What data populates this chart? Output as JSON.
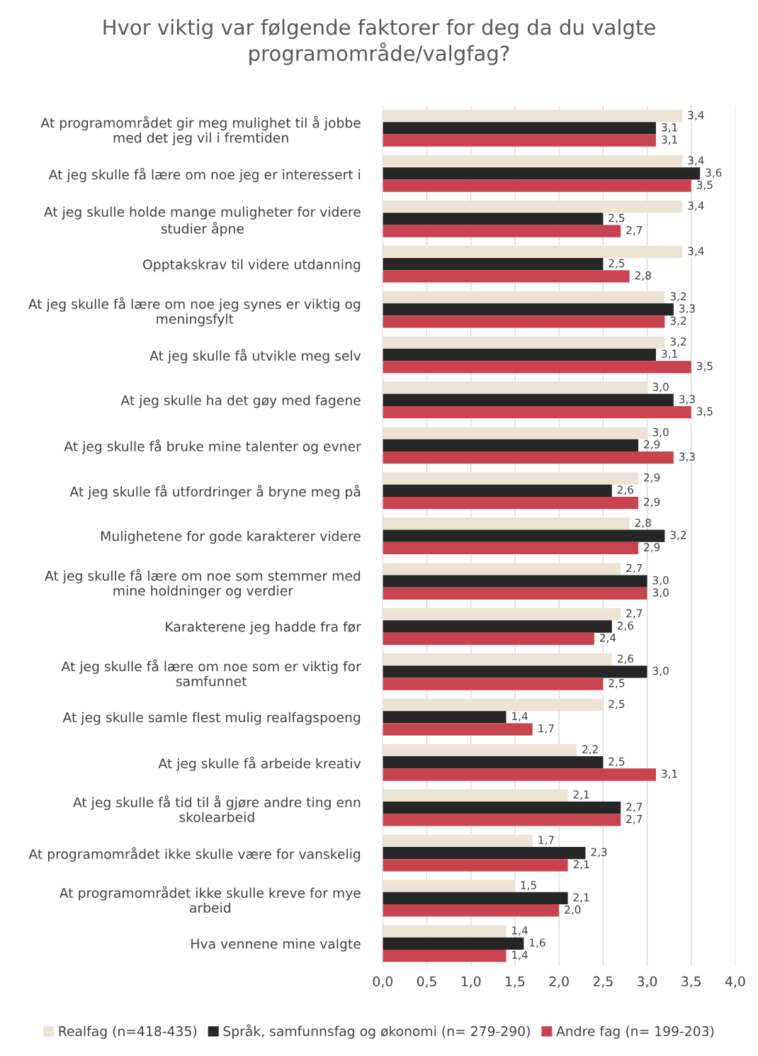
{
  "chart_data": {
    "type": "bar",
    "orientation": "horizontal",
    "title": "Hvor viktig var følgende faktorer for deg da du valgte\nprogramområde/valgfag?",
    "categories": [
      "At programområdet gir meg mulighet til å jobbe\nmed det jeg vil i fremtiden",
      "At jeg skulle få lære om noe jeg er interessert i",
      "At jeg skulle holde mange muligheter for videre\nstudier åpne",
      "Opptakskrav til videre utdanning",
      "At jeg skulle få lære om noe jeg synes er viktig og\nmeningsfylt",
      "At jeg skulle få utvikle meg selv",
      "At jeg skulle ha det gøy med fagene",
      "At jeg skulle få bruke mine talenter og evner",
      "At jeg skulle få utfordringer å bryne meg på",
      "Mulighetene for gode karakterer videre",
      "At jeg skulle få lære om noe som stemmer med\nmine holdninger og verdier",
      "Karakterene jeg hadde fra før",
      "At jeg skulle få lære om noe som er viktig for\nsamfunnet",
      "At jeg skulle samle flest mulig realfagspoeng",
      "At jeg skulle få arbeide kreativ",
      "At jeg skulle få tid til å gjøre andre ting enn\nskolearbeid",
      "At programområdet ikke skulle være for vanskelig",
      "At programområdet ikke skulle kreve for mye\narbeid",
      "Hva vennene mine valgte"
    ],
    "series": [
      {
        "name": "Realfag (n=418-435)",
        "color": "#ede3d4",
        "values": [
          3.4,
          3.4,
          3.4,
          3.4,
          3.2,
          3.2,
          3.0,
          3.0,
          2.9,
          2.8,
          2.7,
          2.7,
          2.6,
          2.5,
          2.2,
          2.1,
          1.7,
          1.5,
          1.4
        ],
        "value_labels": [
          "3,4",
          "3,4",
          "3,4",
          "3,4",
          "3,2",
          "3,2",
          "3,0",
          "3,0",
          "2,9",
          "2,8",
          "2,7",
          "2,7",
          "2,6",
          "2,5",
          "2,2",
          "2,1",
          "1,7",
          "1,5",
          "1,4"
        ]
      },
      {
        "name": "Språk, samfunnsfag og økonomi (n= 279-290)",
        "color": "#262626",
        "values": [
          3.1,
          3.6,
          2.5,
          2.5,
          3.3,
          3.1,
          3.3,
          2.9,
          2.6,
          3.2,
          3.0,
          2.6,
          3.0,
          1.4,
          2.5,
          2.7,
          2.3,
          2.1,
          1.6
        ],
        "value_labels": [
          "3,1",
          "3,6",
          "2,5",
          "2,5",
          "3,3",
          "3,1",
          "3,3",
          "2,9",
          "2,6",
          "3,2",
          "3,0",
          "2,6",
          "3,0",
          "1,4",
          "2,5",
          "2,7",
          "2,3",
          "2,1",
          "1,6"
        ]
      },
      {
        "name": "Andre fag (n= 199-203)",
        "color": "#c9434f",
        "values": [
          3.1,
          3.5,
          2.7,
          2.8,
          3.2,
          3.5,
          3.5,
          3.3,
          2.9,
          2.9,
          3.0,
          2.4,
          2.5,
          1.7,
          3.1,
          2.7,
          2.1,
          2.0,
          1.4
        ],
        "value_labels": [
          "3,1",
          "3,5",
          "2,7",
          "2,8",
          "3,2",
          "3,5",
          "3,5",
          "3,3",
          "2,9",
          "2,9",
          "3,0",
          "2,4",
          "2,5",
          "1,7",
          "3,1",
          "2,7",
          "2,1",
          "2,0",
          "1,4"
        ]
      }
    ],
    "xlim": [
      0,
      4
    ],
    "xticks": [
      {
        "value": 0,
        "label": "0,0"
      },
      {
        "value": 0.5,
        "label": "0,5"
      },
      {
        "value": 1,
        "label": "1,0"
      },
      {
        "value": 1.5,
        "label": "1,5"
      },
      {
        "value": 2,
        "label": "2,0"
      },
      {
        "value": 2.5,
        "label": "2,5"
      },
      {
        "value": 3,
        "label": "3,0"
      },
      {
        "value": 3.5,
        "label": "3,5"
      },
      {
        "value": 4,
        "label": "4,0"
      }
    ],
    "grid": "x",
    "legend": "bottom"
  }
}
